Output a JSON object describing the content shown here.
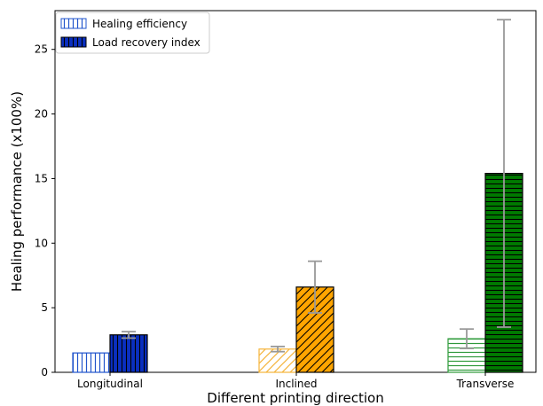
{
  "chart_data": {
    "type": "bar",
    "title": "",
    "xlabel": "Different printing direction",
    "ylabel": "Healing performance (x100%)",
    "ylim": [
      0,
      28
    ],
    "yticks": [
      0,
      5,
      10,
      15,
      20,
      25
    ],
    "categories": [
      "Longitudinal",
      "Inclined",
      "Transverse"
    ],
    "legend_position": "top-left",
    "grid": false,
    "series": [
      {
        "name": "Healing efficiency",
        "values": [
          1.5,
          1.8,
          2.6
        ],
        "errors": [
          0,
          0.2,
          0.75
        ],
        "style": "open-hatched"
      },
      {
        "name": "Load recovery index",
        "values": [
          2.9,
          6.6,
          15.4
        ],
        "errors": [
          0.25,
          2.0,
          11.9
        ],
        "style": "filled-hatched"
      }
    ],
    "category_colors": [
      {
        "edge": "#2255cc",
        "fill": "#0a2fc0",
        "hatch_light": "#2255cc"
      },
      {
        "edge": "#f5b43a",
        "fill": "#ffa500",
        "hatch_light": "#f5b43a"
      },
      {
        "edge": "#2e9a3a",
        "fill": "#007a00",
        "hatch_light": "#2e9a3a"
      }
    ],
    "hatch_patterns": [
      "vertical",
      "diagonal",
      "horizontal"
    ],
    "error_bar_color": "#999999"
  }
}
